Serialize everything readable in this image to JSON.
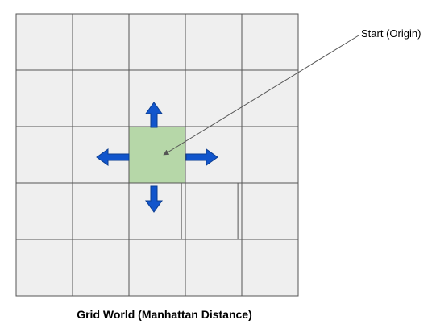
{
  "caption": "Grid World (Manhattan Distance)",
  "annotation": {
    "label": "Start (Origin)"
  },
  "grid": {
    "rows": 5,
    "cols": 5,
    "start_cell": {
      "row": 2,
      "col": 2
    }
  },
  "colors": {
    "cell_fill": "#efefef",
    "cell_stroke": "#555555",
    "start_fill": "#b6d7a8",
    "arrow_fill": "#1155cc",
    "arrow_stroke": "#0b3d91",
    "pointer_line": "#555555",
    "text": "#000000"
  },
  "moves": [
    {
      "direction": "up",
      "icon": "arrow-up-icon"
    },
    {
      "direction": "down",
      "icon": "arrow-down-icon"
    },
    {
      "direction": "left",
      "icon": "arrow-left-icon"
    },
    {
      "direction": "right",
      "icon": "arrow-right-icon"
    }
  ]
}
